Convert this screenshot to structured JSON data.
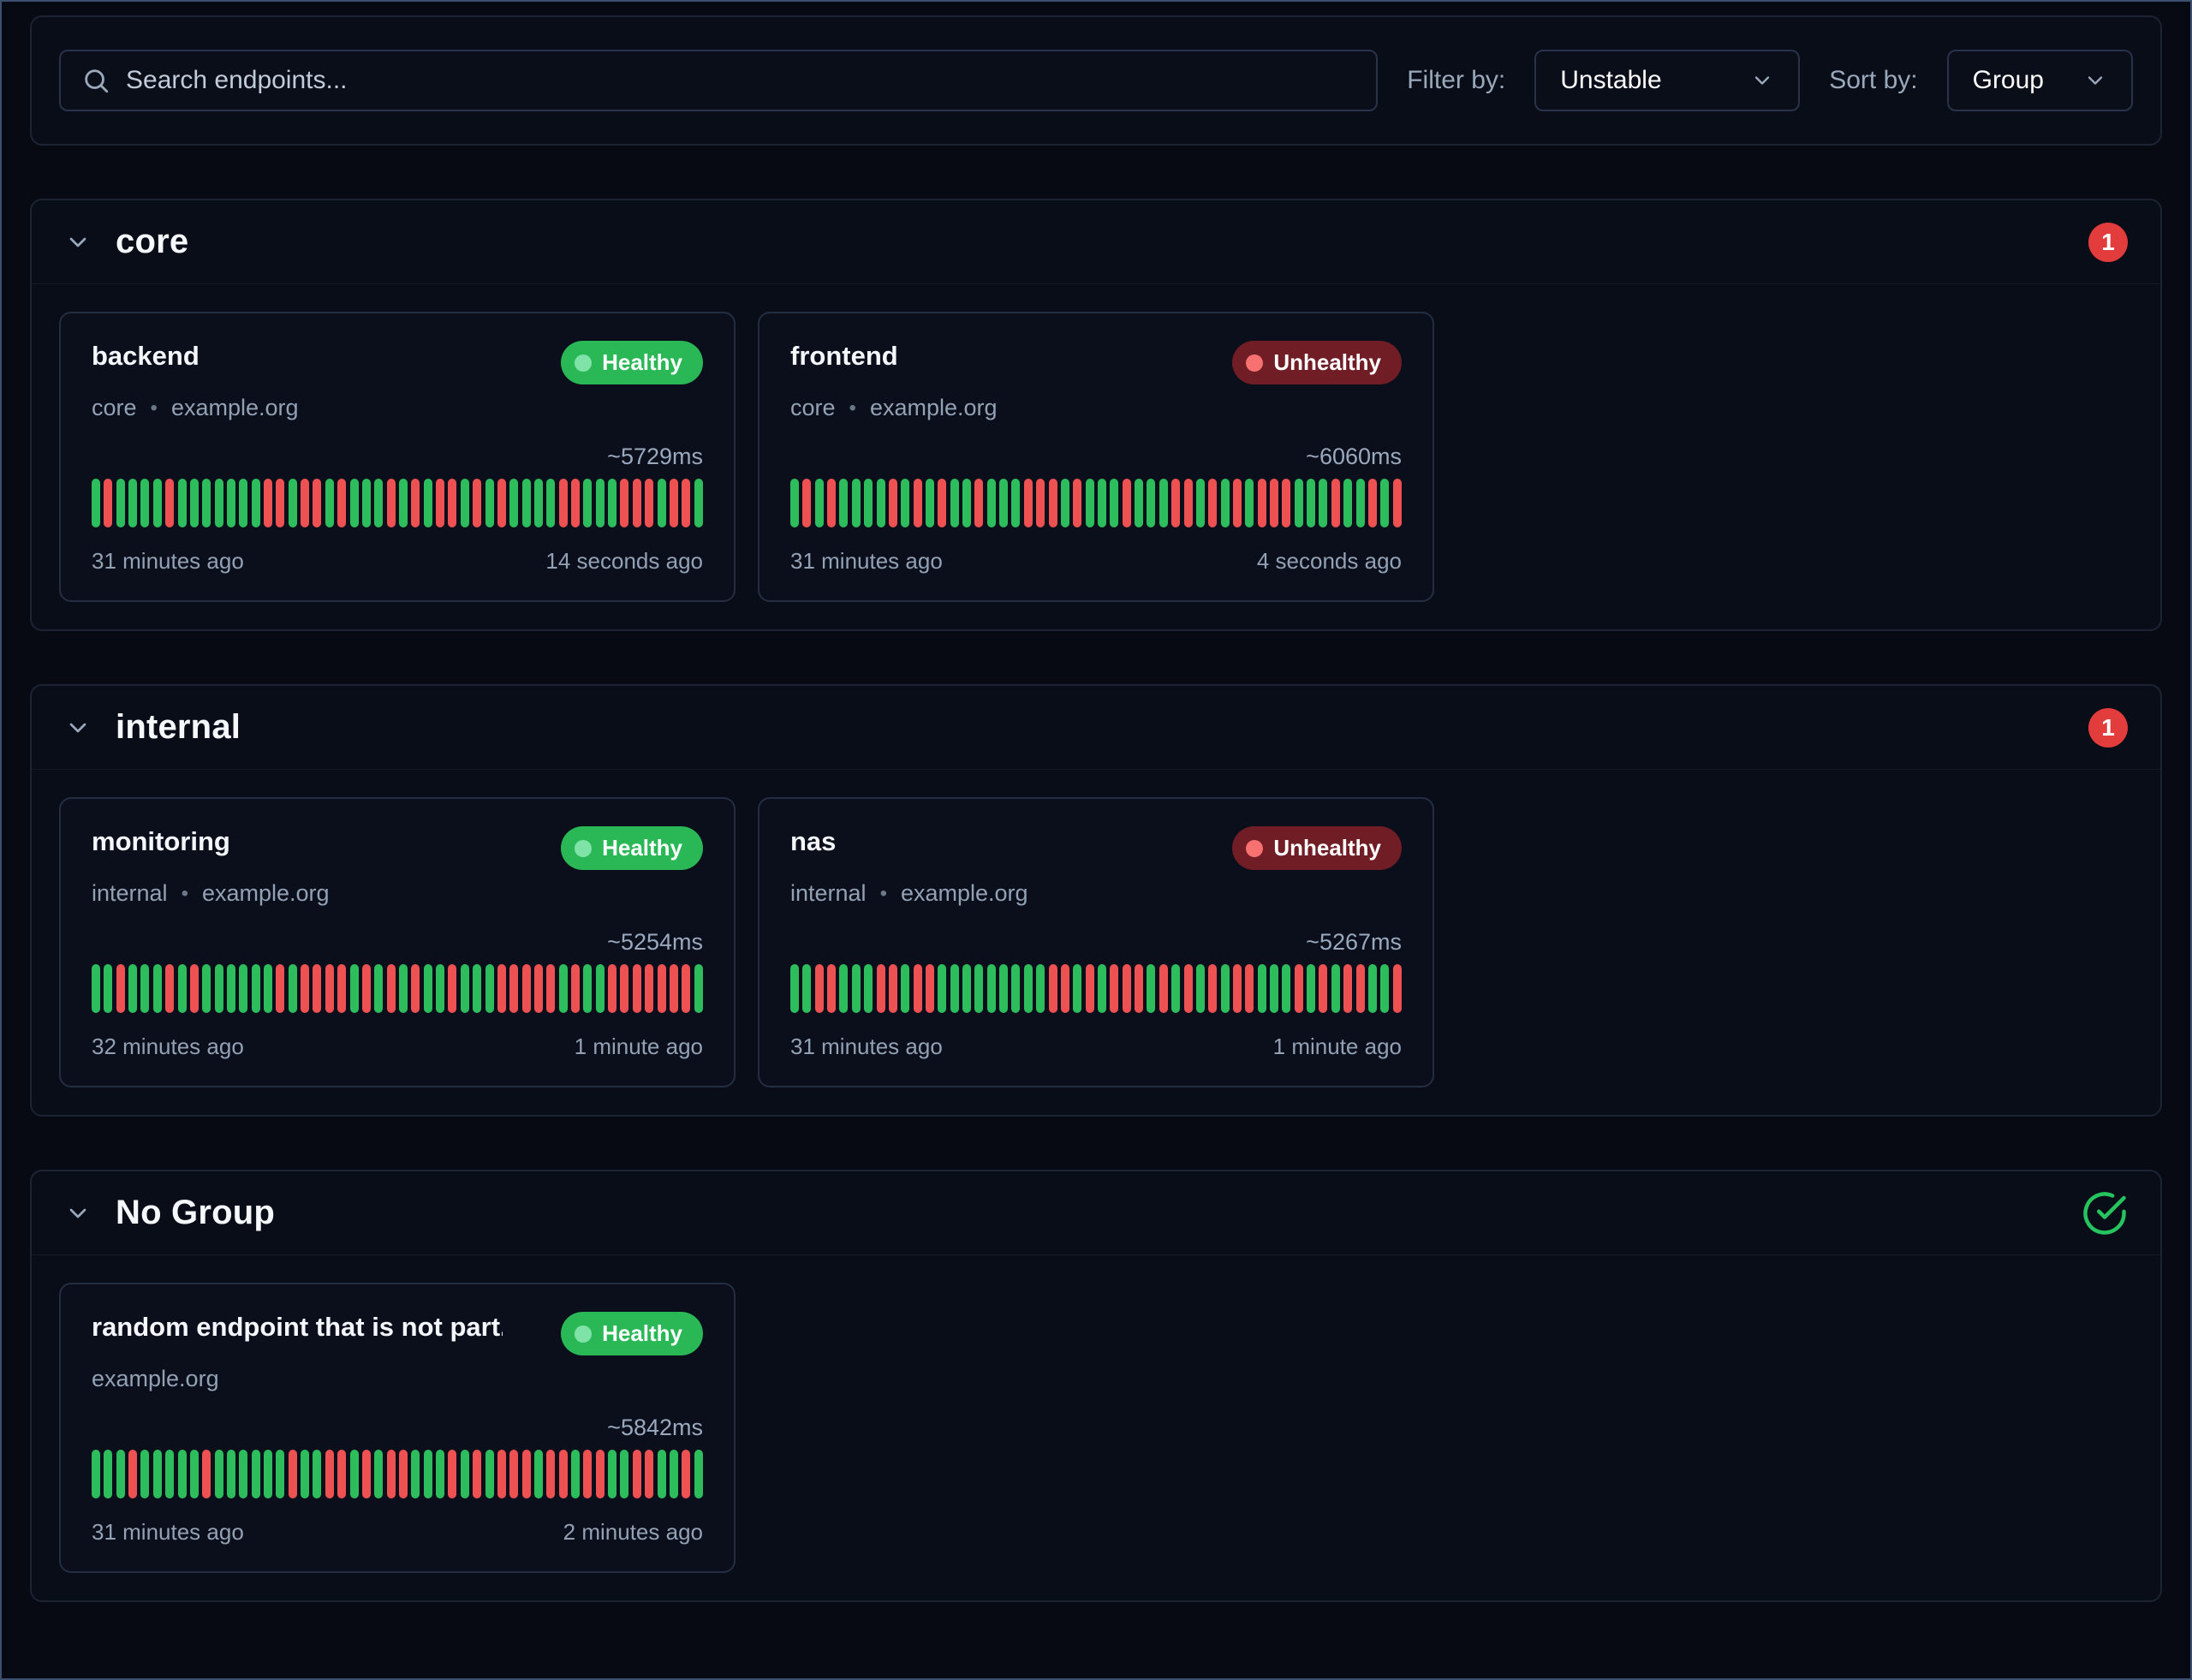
{
  "toolbar": {
    "search_placeholder": "Search endpoints...",
    "filter_label": "Filter by:",
    "filter_value": "Unstable",
    "sort_label": "Sort by:",
    "sort_value": "Group"
  },
  "colors": {
    "bar_up": "#2ebd5d",
    "bar_down": "#ed5152",
    "healthy_badge": "#2ab857",
    "unhealthy_badge": "#701d26",
    "count_badge": "#e23c3c",
    "check_icon": "#26c45e"
  },
  "chart_data": {
    "type": "bar",
    "note": "uptime history strips, oldest left to newest right, G=success R=failure",
    "series": [
      {
        "name": "backend",
        "history": "GRGGGGRGGGGGGGRRGRRGRGGGRGRGRRGRGRGGGGRRGGGRRRGRRG"
      },
      {
        "name": "frontend",
        "history": "GRGRGGGGRGRGRGGRGGGRRRGRGGGRGGGRRGRGRGRRRGGGRGGRGR"
      },
      {
        "name": "monitoring",
        "history": "GGRGGGRGRGGGGGGRGRRRRGRGRGRGGRGGGRRRRRGRGGRRRRRRRG"
      },
      {
        "name": "nas",
        "history": "GGRRGGGRRGRRGGGGGGGGGRRGRGRRRGRGRGRGRRGGGRGRGRRGGR"
      },
      {
        "name": "random endpoint that is not part...",
        "history": "GGGRGGGGGRGGGGGGRGGRRGRGRRGGGRGRGRRRGRRGRRGGRRGGRG"
      }
    ]
  },
  "groups": [
    {
      "name": "core",
      "indicator": "count",
      "unhealthy_count": "1",
      "endpoints": [
        {
          "name": "backend",
          "group_label": "core",
          "host": "example.org",
          "status": "healthy",
          "status_label": "Healthy",
          "avg_response": "~5729ms",
          "window_start": "31 minutes ago",
          "window_end": "14 seconds ago",
          "history": "GRGGGGRGGGGGGGRRGRRGRGGGRGRGRRGRGRGGGGRRGGGRRRGRRG"
        },
        {
          "name": "frontend",
          "group_label": "core",
          "host": "example.org",
          "status": "unhealthy",
          "status_label": "Unhealthy",
          "avg_response": "~6060ms",
          "window_start": "31 minutes ago",
          "window_end": "4 seconds ago",
          "history": "GRGRGGGGRGRGRGGRGGGRRRGRGGGRGGGRRGRGRGRRRGGGRGGRGR"
        }
      ]
    },
    {
      "name": "internal",
      "indicator": "count",
      "unhealthy_count": "1",
      "endpoints": [
        {
          "name": "monitoring",
          "group_label": "internal",
          "host": "example.org",
          "status": "healthy",
          "status_label": "Healthy",
          "avg_response": "~5254ms",
          "window_start": "32 minutes ago",
          "window_end": "1 minute ago",
          "history": "GGRGGGRGRGGGGGGRGRRRRGRGRGRGGRGGGRRRRRGRGGRRRRRRRG"
        },
        {
          "name": "nas",
          "group_label": "internal",
          "host": "example.org",
          "status": "unhealthy",
          "status_label": "Unhealthy",
          "avg_response": "~5267ms",
          "window_start": "31 minutes ago",
          "window_end": "1 minute ago",
          "history": "GGRRGGGRRGRRGGGGGGGGGRRGRGRRRGRGRGRGRRGGGRGRGRRGGR"
        }
      ]
    },
    {
      "name": "No Group",
      "indicator": "check",
      "unhealthy_count": "",
      "endpoints": [
        {
          "name": "random endpoint that is not part...",
          "group_label": "",
          "host": "example.org",
          "status": "healthy",
          "status_label": "Healthy",
          "avg_response": "~5842ms",
          "window_start": "31 minutes ago",
          "window_end": "2 minutes ago",
          "history": "GGGRGGGGGRGGGGGGRGGRRGRGRRGGGRGRGRRRGRRGRRGGRRGGRG"
        }
      ]
    }
  ]
}
